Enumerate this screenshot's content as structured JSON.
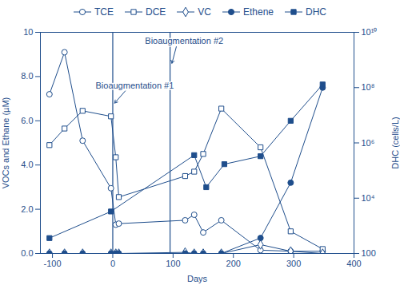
{
  "chart_data": {
    "type": "line",
    "xlabel": "Days",
    "ylabel": "VOCs and Ethane (µM)",
    "y2label": "DHC (cells/L)",
    "xlim": [
      -120,
      400
    ],
    "xticks": [
      -100,
      0,
      100,
      200,
      300,
      400
    ],
    "ylim": [
      0,
      10
    ],
    "yticks": [
      {
        "value": 0,
        "label": "0.0"
      },
      {
        "value": 2,
        "label": "2.0"
      },
      {
        "value": 4,
        "label": "4.0"
      },
      {
        "value": 6,
        "label": "6.0"
      },
      {
        "value": 8,
        "label": "8.0"
      },
      10
    ],
    "y2lim": [
      100,
      10000000000
    ],
    "y2ticks": [
      100,
      {
        "value": 10000,
        "label": "10⁴"
      },
      {
        "value": 1000000,
        "label": "10⁶"
      },
      {
        "value": 100000000,
        "label": "10⁸"
      },
      {
        "value": 10000000000,
        "label": "10¹⁰"
      }
    ],
    "log": "y2",
    "annotations": [
      {
        "text": "Bioaugmentation #1",
        "x": 0
      },
      {
        "text": "Bioaugmentation #2",
        "x": 95
      }
    ],
    "series": [
      {
        "name": "TCE",
        "color": "#1f4e8c",
        "marker": "circle",
        "x": [
          -105,
          -80,
          -50,
          -3,
          5,
          10,
          120,
          135,
          150,
          180,
          245,
          295,
          348
        ],
        "values": [
          7.2,
          9.1,
          5.1,
          2.95,
          1.3,
          1.35,
          1.5,
          1.75,
          0.95,
          1.5,
          0.15,
          0.1,
          0.1
        ]
      },
      {
        "name": "DCE",
        "color": "#1f4e8c",
        "marker": "square",
        "x": [
          -105,
          -80,
          -50,
          -3,
          5,
          10,
          120,
          135,
          150,
          180,
          245,
          295,
          348
        ],
        "values": [
          4.9,
          5.65,
          6.45,
          6.2,
          4.35,
          2.55,
          3.5,
          3.7,
          4.5,
          6.55,
          4.8,
          1.0,
          0.2
        ]
      },
      {
        "name": "VC",
        "color": "#1f4e8c",
        "marker": "diamond",
        "x": [
          -105,
          -80,
          -50,
          -3,
          5,
          10,
          120,
          135,
          150,
          180,
          245,
          295,
          348
        ],
        "values": [
          0,
          0,
          0,
          0,
          0,
          0,
          0.05,
          0,
          0,
          0,
          0.4,
          0.1,
          0
        ]
      },
      {
        "name": "Ethene",
        "color": "#1f4e8c",
        "marker": "filled_circle",
        "x": [
          -105,
          -80,
          -50,
          -3,
          5,
          10,
          120,
          135,
          150,
          180,
          245,
          295,
          348
        ],
        "values": [
          0,
          0,
          0,
          0,
          0,
          0,
          0,
          0,
          0,
          0,
          0.7,
          3.2,
          7.5
        ]
      },
      {
        "name": "DHC",
        "color": "#1f4e8c",
        "marker": "filled_square",
        "axis": "y2",
        "x": [
          -105,
          -3,
          135,
          155,
          185,
          245,
          295,
          348
        ],
        "values": [
          360,
          3300,
          360000,
          25000,
          170000,
          330000,
          6300000,
          130000000
        ]
      }
    ]
  }
}
